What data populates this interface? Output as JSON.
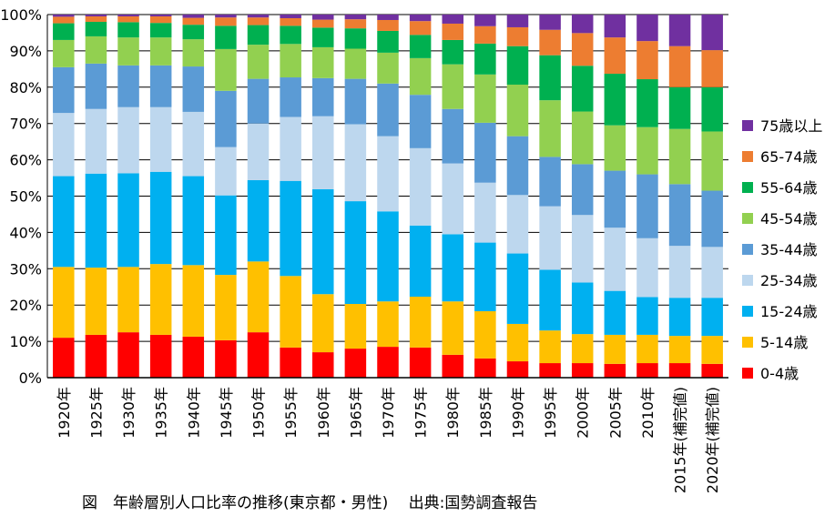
{
  "caption": "図　年齢層別人口比率の推移(東京都・男性)　 出典:国勢調査報告",
  "chart_data": {
    "type": "bar",
    "stacked": true,
    "normalized": true,
    "categories": [
      "1920年",
      "1925年",
      "1930年",
      "1935年",
      "1940年",
      "1945年",
      "1950年",
      "1955年",
      "1960年",
      "1965年",
      "1970年",
      "1975年",
      "1980年",
      "1985年",
      "1990年",
      "1995年",
      "2000年",
      "2005年",
      "2010年",
      "2015年(補完値)",
      "2020年(補完値)"
    ],
    "yticks": [
      "0%",
      "10%",
      "20%",
      "30%",
      "40%",
      "50%",
      "60%",
      "70%",
      "80%",
      "90%",
      "100%"
    ],
    "ylim": [
      0,
      100
    ],
    "grid": true,
    "legend_position": "right",
    "series": [
      {
        "name": "0-4歳",
        "color": "#ff0000",
        "values": [
          11.0,
          11.8,
          12.5,
          11.8,
          11.3,
          10.3,
          12.5,
          8.3,
          7.0,
          8.0,
          8.5,
          8.3,
          6.3,
          5.3,
          4.5,
          4.0,
          4.0,
          3.8,
          4.0,
          4.0,
          3.8
        ]
      },
      {
        "name": "5-14歳",
        "color": "#ffc000",
        "values": [
          19.5,
          18.5,
          18.0,
          19.5,
          19.7,
          18.0,
          19.5,
          19.7,
          16.0,
          12.3,
          12.5,
          14.0,
          14.7,
          13.0,
          10.3,
          9.0,
          8.0,
          8.0,
          7.8,
          7.5,
          7.7
        ]
      },
      {
        "name": "15-24歳",
        "color": "#00b0f0",
        "values": [
          25.0,
          25.9,
          25.8,
          25.4,
          24.5,
          21.9,
          22.4,
          26.2,
          28.9,
          28.3,
          24.8,
          19.6,
          18.5,
          18.9,
          19.4,
          16.7,
          14.2,
          12.1,
          10.4,
          10.5,
          10.5
        ]
      },
      {
        "name": "25-34歳",
        "color": "#bdd7ee",
        "values": [
          17.4,
          17.8,
          18.2,
          17.8,
          17.7,
          13.3,
          15.6,
          17.6,
          20.1,
          21.2,
          20.7,
          21.3,
          19.5,
          16.5,
          16.1,
          17.5,
          18.6,
          17.4,
          16.2,
          14.3,
          14.0
        ]
      },
      {
        "name": "35-44歳",
        "color": "#5b9bd5",
        "values": [
          12.6,
          12.5,
          11.5,
          11.5,
          12.5,
          15.5,
          12.3,
          10.9,
          10.5,
          12.5,
          14.5,
          14.7,
          15.0,
          16.5,
          16.2,
          13.6,
          14.0,
          15.7,
          17.6,
          17.0,
          15.5
        ]
      },
      {
        "name": "45-54歳",
        "color": "#92d050",
        "values": [
          7.5,
          7.5,
          7.7,
          7.7,
          7.5,
          11.5,
          9.4,
          9.2,
          8.5,
          8.3,
          8.5,
          10.1,
          12.3,
          13.3,
          14.2,
          15.6,
          14.5,
          12.5,
          13.0,
          15.2,
          16.3
        ]
      },
      {
        "name": "55-64歳",
        "color": "#00b050",
        "values": [
          4.6,
          4.0,
          4.2,
          4.0,
          4.0,
          6.4,
          5.4,
          5.0,
          5.4,
          5.6,
          6.0,
          6.4,
          6.7,
          8.5,
          10.6,
          12.4,
          12.6,
          14.2,
          13.2,
          11.5,
          12.2
        ]
      },
      {
        "name": "65-74歳",
        "color": "#ed7d31",
        "values": [
          1.8,
          1.5,
          1.6,
          1.8,
          1.9,
          2.3,
          2.1,
          2.1,
          2.2,
          2.5,
          3.0,
          3.8,
          4.5,
          4.8,
          5.2,
          7.0,
          9.0,
          10.0,
          10.5,
          11.3,
          10.2
        ]
      },
      {
        "name": "75歳以上",
        "color": "#7030a0",
        "values": [
          0.6,
          0.5,
          0.5,
          0.5,
          0.9,
          0.8,
          0.8,
          1.0,
          1.4,
          1.3,
          1.5,
          1.8,
          2.5,
          3.2,
          3.5,
          4.2,
          5.1,
          6.3,
          7.3,
          8.7,
          9.8
        ]
      }
    ]
  }
}
